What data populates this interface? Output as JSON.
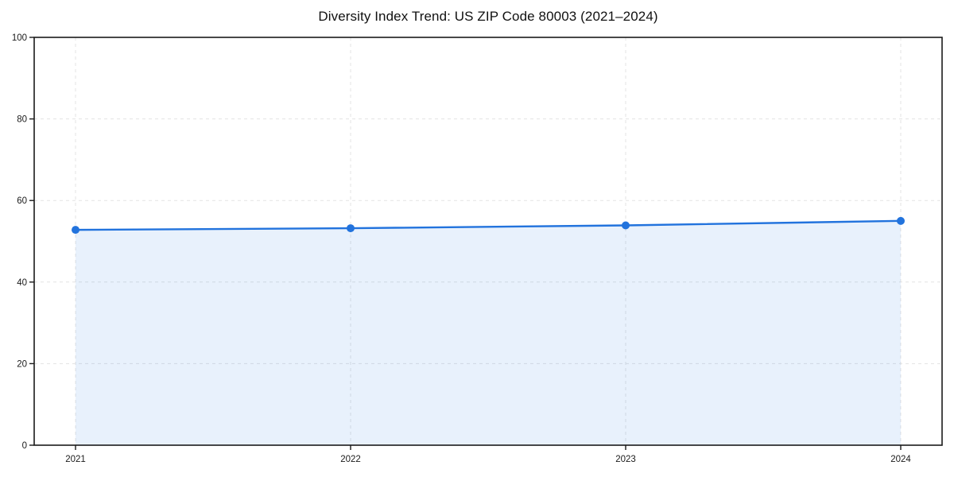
{
  "page": {
    "background_color": "#ffffff"
  },
  "chart_data": {
    "type": "area",
    "title": "Diversity Index Trend: US ZIP Code 80003 (2021–2024)",
    "x": [
      2021,
      2022,
      2023,
      2024
    ],
    "series": [
      {
        "name": "Diversity Index",
        "values": [
          52.8,
          53.2,
          53.9,
          55.0
        ]
      }
    ],
    "xlabel": "",
    "ylabel": "",
    "ylim": [
      0,
      100
    ],
    "yticks": [
      0,
      20,
      40,
      60,
      80,
      100
    ],
    "xticks": [
      2021,
      2022,
      2023,
      2024
    ],
    "grid": true,
    "grid_style": "dashed",
    "legend_position": "none",
    "line_color": "#2273dd",
    "fill_color": "rgba(34,115,221,0.10)",
    "marker": "circle",
    "axis_color": "#1a1a1a",
    "grid_color": "#e3e3e3",
    "text_color": "#1a1a1a"
  }
}
